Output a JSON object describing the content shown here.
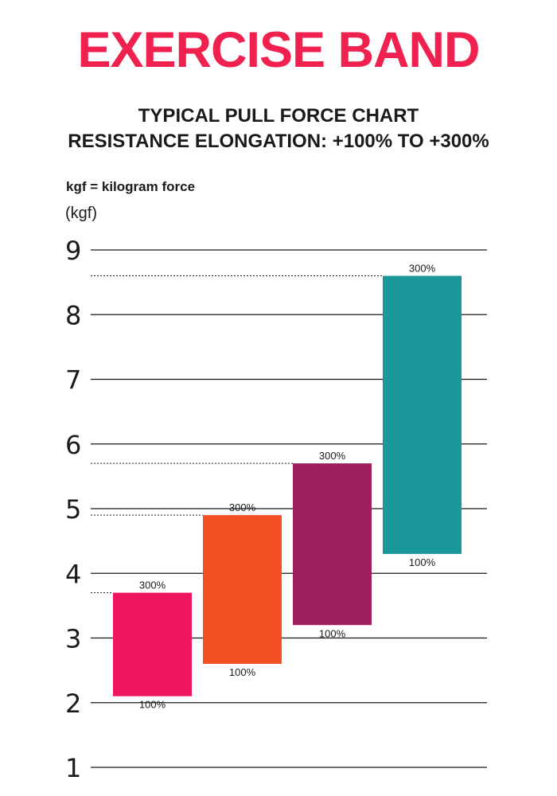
{
  "header": {
    "title": "EXERCISE BAND",
    "subtitle_line1": "TYPICAL PULL FORCE CHART",
    "subtitle_line2": "RESISTANCE ELONGATION: +100% TO +300%"
  },
  "notes": {
    "unit_note": "kgf = kilogram force"
  },
  "colors": {
    "title": "#f0204f",
    "gridline": "#1a1a1a",
    "band_1": "#ee1660",
    "band_2": "#f25022",
    "band_3": "#9c1e5b",
    "band_4": "#1a9899"
  },
  "chart_data": {
    "type": "bar",
    "subtype": "floating-range",
    "title": "",
    "xlabel": "",
    "ylabel": "(kgf)",
    "ylim": [
      1,
      9
    ],
    "yticks": [
      1,
      2,
      3,
      4,
      5,
      6,
      7,
      8,
      9
    ],
    "grid": true,
    "range_labels": {
      "low": "100%",
      "high": "300%"
    },
    "series": [
      {
        "color": "#ee1660",
        "low": 2.1,
        "high": 3.7
      },
      {
        "color": "#f25022",
        "low": 2.6,
        "high": 4.9
      },
      {
        "color": "#9c1e5b",
        "low": 3.2,
        "high": 5.7
      },
      {
        "color": "#1a9899",
        "low": 4.3,
        "high": 8.6
      }
    ]
  }
}
